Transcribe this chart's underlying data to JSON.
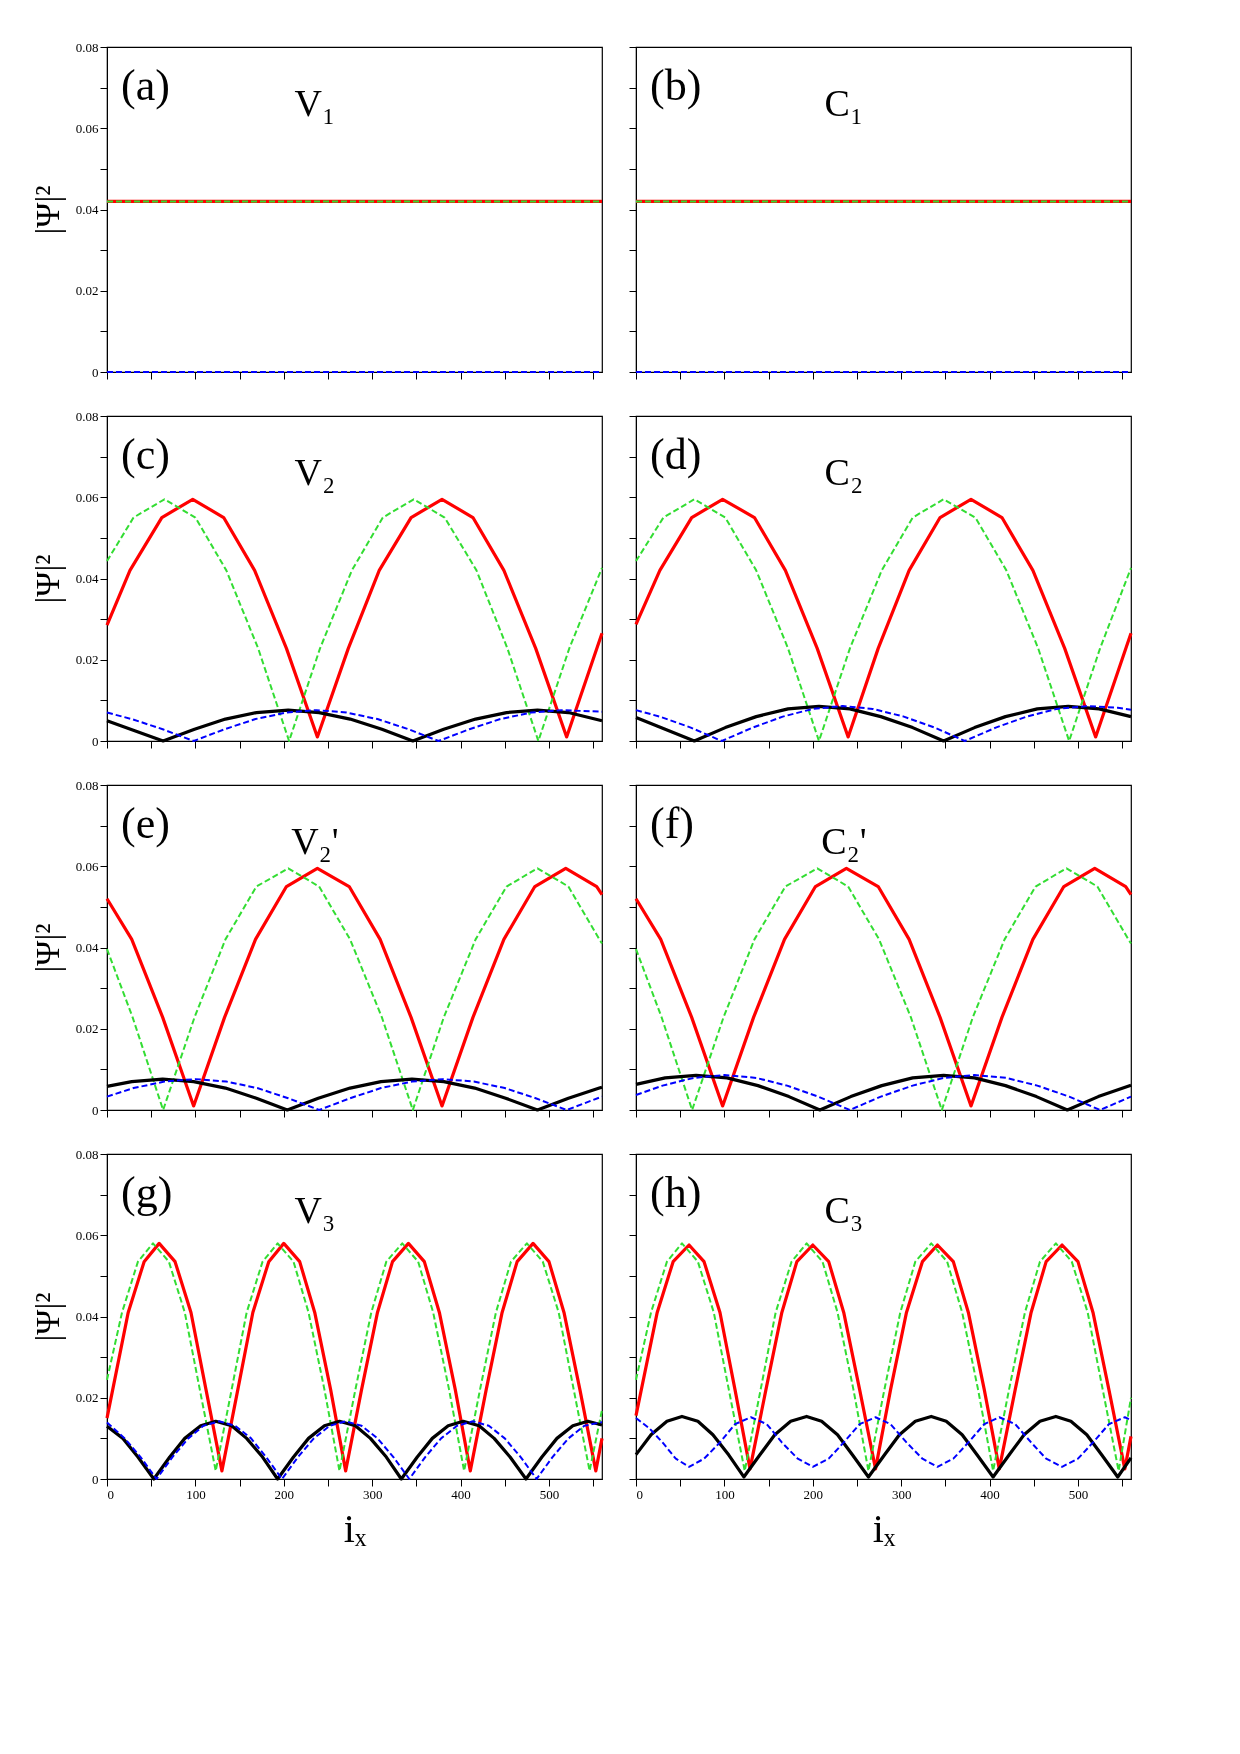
{
  "chart_data": [
    {
      "type": "line",
      "annotations": [
        "(a)",
        "V₁"
      ],
      "ylabel": "|Ψ|²",
      "tick_labels": "y",
      "xlim": [
        0,
        560
      ],
      "ylim": [
        0,
        0.08
      ],
      "xticks": [
        0,
        {
          "value": 50,
          "label": null
        },
        100,
        {
          "value": 150,
          "label": null
        },
        200,
        {
          "value": 250,
          "label": null
        },
        300,
        {
          "value": 350,
          "label": null
        },
        400,
        {
          "value": 450,
          "label": null
        },
        500,
        {
          "value": 550,
          "label": null
        }
      ],
      "yticks": [
        0,
        {
          "value": 0.01,
          "label": null
        },
        0.02,
        {
          "value": 0.03,
          "label": null
        },
        0.04,
        {
          "value": 0.05,
          "label": null
        },
        0.06,
        {
          "value": 0.07,
          "label": null
        },
        0.08
      ],
      "series": [
        {
          "color": "#ff0000",
          "line_style": "solid",
          "x": [
            0,
            560
          ],
          "values": [
            0.042,
            0.042
          ]
        },
        {
          "color": "#33dd33",
          "line_style": "dashed",
          "x": [
            0,
            560
          ],
          "values": [
            0.042,
            0.042
          ]
        },
        {
          "color": "#0000ff",
          "line_style": "dashed",
          "x": [
            0,
            560
          ],
          "values": [
            0,
            0
          ]
        }
      ]
    },
    {
      "type": "line",
      "annotations": [
        "(b)",
        "C₁"
      ],
      "tick_labels": false,
      "xlim": [
        0,
        560
      ],
      "ylim": [
        0,
        0.08
      ],
      "xticks": [
        0,
        {
          "value": 50,
          "label": null
        },
        100,
        {
          "value": 150,
          "label": null
        },
        200,
        {
          "value": 250,
          "label": null
        },
        300,
        {
          "value": 350,
          "label": null
        },
        400,
        {
          "value": 450,
          "label": null
        },
        500,
        {
          "value": 550,
          "label": null
        }
      ],
      "yticks": [
        0,
        {
          "value": 0.01,
          "label": null
        },
        0.02,
        {
          "value": 0.03,
          "label": null
        },
        0.04,
        {
          "value": 0.05,
          "label": null
        },
        0.06,
        {
          "value": 0.07,
          "label": null
        },
        0.08
      ],
      "series": [
        {
          "color": "#ff0000",
          "line_style": "solid",
          "x": [
            0,
            560
          ],
          "values": [
            0.042,
            0.042
          ]
        },
        {
          "color": "#33dd33",
          "line_style": "dashed",
          "x": [
            0,
            560
          ],
          "values": [
            0.042,
            0.042
          ]
        },
        {
          "color": "#0000ff",
          "line_style": "dashed",
          "x": [
            0,
            560
          ],
          "values": [
            0,
            0
          ]
        }
      ]
    },
    {
      "type": "line",
      "annotations": [
        "(c)",
        "V₂"
      ],
      "ylabel": "|Ψ|²",
      "tick_labels": "y",
      "xlim": [
        0,
        560
      ],
      "ylim": [
        0,
        0.08
      ],
      "xticks": [
        0,
        {
          "value": 50,
          "label": null
        },
        100,
        {
          "value": 150,
          "label": null
        },
        200,
        {
          "value": 250,
          "label": null
        },
        300,
        {
          "value": 350,
          "label": null
        },
        400,
        {
          "value": 450,
          "label": null
        },
        500,
        {
          "value": 550,
          "label": null
        }
      ],
      "yticks": [
        0,
        {
          "value": 0.01,
          "label": null
        },
        0.02,
        {
          "value": 0.03,
          "label": null
        },
        0.04,
        {
          "value": 0.05,
          "label": null
        },
        0.06,
        {
          "value": 0.07,
          "label": null
        },
        0.08
      ],
      "series": [
        {
          "color": "#ff0000",
          "line_style": "solid",
          "x": [
            0,
            26,
            62,
            97,
            132,
            167,
            203,
            238,
            273,
            308,
            344,
            379,
            414,
            449,
            485,
            520,
            560
          ],
          "values": [
            0.0285,
            0.042,
            0.055,
            0.0595,
            0.055,
            0.042,
            0.0228,
            0.001,
            0.0228,
            0.042,
            0.055,
            0.0595,
            0.055,
            0.042,
            0.0228,
            0.001,
            0.0265
          ]
        },
        {
          "color": "#33dd33",
          "line_style": "dashed",
          "x": [
            0,
            30,
            65,
            100,
            135,
            171,
            206,
            241,
            277,
            312,
            347,
            382,
            418,
            453,
            488,
            523,
            560
          ],
          "values": [
            0.0443,
            0.055,
            0.0595,
            0.055,
            0.042,
            0.0228,
            0,
            0.0228,
            0.042,
            0.055,
            0.0595,
            0.055,
            0.042,
            0.0228,
            0,
            0.0228,
            0.0426
          ]
        },
        {
          "color": "#000000",
          "line_style": "solid",
          "x": [
            0,
            63.5,
            99,
            134,
            169,
            205,
            240,
            275,
            311,
            346,
            381,
            417,
            452,
            487,
            522,
            560
          ],
          "values": [
            0.005,
            0,
            0.0029,
            0.0054,
            0.007,
            0.0076,
            0.007,
            0.0054,
            0.0029,
            0,
            0.0029,
            0.0054,
            0.007,
            0.0076,
            0.007,
            0.005
          ]
        },
        {
          "color": "#0000ff",
          "line_style": "dashed",
          "x": [
            0,
            28,
            63,
            98,
            133,
            168,
            203,
            237,
            271,
            306,
            341,
            375,
            410,
            445,
            480,
            515,
            560
          ],
          "values": [
            0.007,
            0.0054,
            0.0029,
            0,
            0.0029,
            0.0054,
            0.007,
            0.0076,
            0.007,
            0.0054,
            0.0029,
            0,
            0.0029,
            0.0054,
            0.007,
            0.0076,
            0.0072
          ]
        }
      ]
    },
    {
      "type": "line",
      "annotations": [
        "(d)",
        "C₂"
      ],
      "tick_labels": false,
      "xlim": [
        0,
        560
      ],
      "ylim": [
        0,
        0.08
      ],
      "xticks": [
        0,
        {
          "value": 50,
          "label": null
        },
        100,
        {
          "value": 150,
          "label": null
        },
        200,
        {
          "value": 250,
          "label": null
        },
        300,
        {
          "value": 350,
          "label": null
        },
        400,
        {
          "value": 450,
          "label": null
        },
        500,
        {
          "value": 550,
          "label": null
        }
      ],
      "yticks": [
        0,
        {
          "value": 0.01,
          "label": null
        },
        0.02,
        {
          "value": 0.03,
          "label": null
        },
        0.04,
        {
          "value": 0.05,
          "label": null
        },
        0.06,
        {
          "value": 0.07,
          "label": null
        },
        0.08
      ],
      "series": [
        {
          "color": "#ff0000",
          "line_style": "solid",
          "x": [
            0,
            27,
            63,
            98,
            134,
            169,
            205,
            240,
            274,
            309,
            344,
            379,
            414,
            449,
            485,
            520,
            560
          ],
          "values": [
            0.0287,
            0.042,
            0.055,
            0.0595,
            0.055,
            0.042,
            0.0228,
            0.001,
            0.0228,
            0.042,
            0.055,
            0.0595,
            0.055,
            0.042,
            0.0228,
            0.001,
            0.0265
          ]
        },
        {
          "color": "#33dd33",
          "line_style": "dashed",
          "x": [
            0,
            31,
            66,
            101,
            136,
            172,
            207,
            242,
            278,
            313,
            348,
            384,
            419,
            455,
            490,
            525,
            560
          ],
          "values": [
            0.0443,
            0.055,
            0.0595,
            0.055,
            0.042,
            0.0228,
            0,
            0.0228,
            0.042,
            0.055,
            0.0595,
            0.055,
            0.042,
            0.0228,
            0,
            0.0228,
            0.0426
          ]
        },
        {
          "color": "#000000",
          "line_style": "solid",
          "x": [
            0,
            66,
            101,
            136,
            172,
            207,
            242,
            277,
            313,
            348,
            383,
            418,
            454,
            489,
            524,
            560
          ],
          "values": [
            0.0058,
            0,
            0.0033,
            0.006,
            0.0079,
            0.0085,
            0.0079,
            0.006,
            0.0033,
            0,
            0.0033,
            0.006,
            0.0079,
            0.0085,
            0.0079,
            0.006
          ]
        },
        {
          "color": "#0000ff",
          "line_style": "dashed",
          "x": [
            0,
            27,
            62,
            97,
            132,
            166,
            200,
            234,
            268,
            303,
            338,
            372,
            407,
            442,
            476,
            511,
            545,
            560
          ],
          "values": [
            0.0076,
            0.006,
            0.0033,
            0,
            0.0033,
            0.006,
            0.0079,
            0.0086,
            0.0079,
            0.006,
            0.0033,
            0,
            0.0033,
            0.006,
            0.0079,
            0.0086,
            0.0082,
            0.0077
          ]
        }
      ]
    },
    {
      "type": "line",
      "annotations": [
        "(e)",
        "V₂'"
      ],
      "ylabel": "|Ψ|²",
      "tick_labels": "y",
      "xlim": [
        0,
        560
      ],
      "ylim": [
        0,
        0.08
      ],
      "xticks": [
        0,
        {
          "value": 50,
          "label": null
        },
        100,
        {
          "value": 150,
          "label": null
        },
        200,
        {
          "value": 250,
          "label": null
        },
        300,
        {
          "value": 350,
          "label": null
        },
        400,
        {
          "value": 450,
          "label": null
        },
        500,
        {
          "value": 550,
          "label": null
        }
      ],
      "yticks": [
        0,
        {
          "value": 0.01,
          "label": null
        },
        0.02,
        {
          "value": 0.03,
          "label": null
        },
        0.04,
        {
          "value": 0.05,
          "label": null
        },
        0.06,
        {
          "value": 0.07,
          "label": null
        },
        0.08
      ],
      "series": [
        {
          "color": "#ff0000",
          "line_style": "solid",
          "x": [
            0,
            28,
            63,
            98,
            133,
            168,
            203,
            238,
            274,
            309,
            344,
            379,
            414,
            449,
            484,
            519,
            554,
            560
          ],
          "values": [
            0.052,
            0.042,
            0.0228,
            0.001,
            0.0228,
            0.042,
            0.055,
            0.0595,
            0.055,
            0.042,
            0.0228,
            0.001,
            0.0228,
            0.042,
            0.055,
            0.0595,
            0.055,
            0.053
          ]
        },
        {
          "color": "#33dd33",
          "line_style": "dashed",
          "x": [
            0,
            29,
            63.5,
            99,
            134,
            169,
            205,
            240,
            275,
            311,
            346,
            381,
            417,
            452,
            487,
            522,
            557,
            560
          ],
          "values": [
            0.0396,
            0.0228,
            0,
            0.0228,
            0.042,
            0.055,
            0.0595,
            0.055,
            0.042,
            0.0228,
            0,
            0.0228,
            0.042,
            0.055,
            0.0595,
            0.055,
            0.042,
            0.041
          ]
        },
        {
          "color": "#000000",
          "line_style": "solid",
          "x": [
            0,
            28,
            63,
            98,
            134,
            169,
            204,
            239,
            275,
            310,
            345,
            381,
            416,
            451,
            487,
            522,
            557,
            560
          ],
          "values": [
            0.0058,
            0.007,
            0.0076,
            0.007,
            0.0054,
            0.0029,
            0,
            0.0029,
            0.0054,
            0.007,
            0.0076,
            0.007,
            0.0054,
            0.0029,
            0,
            0.0029,
            0.0054,
            0.0056
          ]
        },
        {
          "color": "#0000ff",
          "line_style": "dashed",
          "x": [
            0,
            30,
            65,
            100,
            135,
            170,
            205,
            240,
            275,
            310,
            345,
            380,
            415,
            450,
            485,
            520,
            560
          ],
          "values": [
            0.0033,
            0.0054,
            0.007,
            0.0076,
            0.007,
            0.0054,
            0.0029,
            0,
            0.0029,
            0.0054,
            0.007,
            0.0076,
            0.007,
            0.0054,
            0.0029,
            0,
            0.0033
          ]
        }
      ]
    },
    {
      "type": "line",
      "annotations": [
        "(f)",
        "C₂'"
      ],
      "tick_labels": false,
      "xlim": [
        0,
        560
      ],
      "ylim": [
        0,
        0.08
      ],
      "xticks": [
        0,
        {
          "value": 50,
          "label": null
        },
        100,
        {
          "value": 150,
          "label": null
        },
        200,
        {
          "value": 250,
          "label": null
        },
        300,
        {
          "value": 350,
          "label": null
        },
        400,
        {
          "value": 450,
          "label": null
        },
        500,
        {
          "value": 550,
          "label": null
        }
      ],
      "yticks": [
        0,
        {
          "value": 0.01,
          "label": null
        },
        0.02,
        {
          "value": 0.03,
          "label": null
        },
        0.04,
        {
          "value": 0.05,
          "label": null
        },
        0.06,
        {
          "value": 0.07,
          "label": null
        },
        0.08
      ],
      "series": [
        {
          "color": "#ff0000",
          "line_style": "solid",
          "x": [
            0,
            28,
            63,
            98,
            133,
            168,
            203,
            238,
            274,
            309,
            344,
            379,
            414,
            449,
            484,
            519,
            554,
            560
          ],
          "values": [
            0.052,
            0.042,
            0.0228,
            0.001,
            0.0228,
            0.042,
            0.055,
            0.0595,
            0.055,
            0.042,
            0.0228,
            0.001,
            0.0228,
            0.042,
            0.055,
            0.0595,
            0.055,
            0.053
          ]
        },
        {
          "color": "#33dd33",
          "line_style": "dashed",
          "x": [
            0,
            29,
            63.5,
            99,
            134,
            169,
            205,
            240,
            275,
            311,
            346,
            381,
            417,
            452,
            487,
            522,
            557,
            560
          ],
          "values": [
            0.0396,
            0.0228,
            0,
            0.0228,
            0.042,
            0.055,
            0.0595,
            0.055,
            0.042,
            0.0228,
            0,
            0.0228,
            0.042,
            0.055,
            0.0595,
            0.055,
            0.042,
            0.041
          ]
        },
        {
          "color": "#000000",
          "line_style": "solid",
          "x": [
            0,
            33,
            68,
            103,
            138,
            173,
            208,
            243,
            278,
            313,
            348,
            383,
            418,
            453,
            488,
            523,
            560
          ],
          "values": [
            0.0063,
            0.0079,
            0.0085,
            0.0079,
            0.006,
            0.0033,
            0,
            0.0033,
            0.006,
            0.0079,
            0.0085,
            0.0079,
            0.006,
            0.0033,
            0,
            0.0033,
            0.0061
          ]
        },
        {
          "color": "#0000ff",
          "line_style": "dashed",
          "x": [
            0,
            30,
            65,
            100,
            136,
            171,
            206,
            242,
            277,
            313,
            348,
            383,
            419,
            454,
            490,
            525,
            560
          ],
          "values": [
            0.0037,
            0.006,
            0.0079,
            0.0086,
            0.0079,
            0.006,
            0.0033,
            0,
            0.0033,
            0.006,
            0.0079,
            0.0086,
            0.0079,
            0.006,
            0.0033,
            0,
            0.0033
          ]
        }
      ]
    },
    {
      "type": "line",
      "annotations": [
        "(g)",
        "V₃"
      ],
      "ylabel": "|Ψ|²",
      "xlabel": "iₓ",
      "xlim": [
        0,
        560
      ],
      "ylim": [
        0,
        0.08
      ],
      "xticks": [
        0,
        {
          "value": 50,
          "label": null
        },
        100,
        {
          "value": 150,
          "label": null
        },
        200,
        {
          "value": 250,
          "label": null
        },
        300,
        {
          "value": 350,
          "label": null
        },
        400,
        {
          "value": 450,
          "label": null
        },
        500,
        {
          "value": 550,
          "label": null
        }
      ],
      "yticks": [
        0,
        {
          "value": 0.01,
          "label": null
        },
        0.02,
        {
          "value": 0.03,
          "label": null
        },
        0.04,
        {
          "value": 0.05,
          "label": null
        },
        0.06,
        {
          "value": 0.07,
          "label": null
        },
        0.08
      ],
      "series": [
        {
          "color": "#ff0000",
          "line_style": "solid",
          "x": [
            0,
            24,
            42,
            59,
            77,
            95,
            112,
            130,
            148,
            165,
            183,
            200,
            218,
            235,
            253,
            270,
            288,
            306,
            323,
            341,
            359,
            376,
            394,
            411,
            429,
            447,
            464,
            482,
            500,
            517,
            535,
            553,
            560
          ],
          "values": [
            0.015,
            0.041,
            0.0535,
            0.058,
            0.0535,
            0.041,
            0.022,
            0.002,
            0.022,
            0.041,
            0.0535,
            0.058,
            0.0535,
            0.041,
            0.022,
            0.002,
            0.022,
            0.041,
            0.0535,
            0.058,
            0.0535,
            0.041,
            0.022,
            0.002,
            0.022,
            0.041,
            0.0535,
            0.058,
            0.0535,
            0.041,
            0.022,
            0.002,
            0.01
          ]
        },
        {
          "color": "#33dd33",
          "line_style": "dashed",
          "x": [
            0,
            17,
            35,
            52,
            70,
            88,
            105,
            123,
            141,
            158,
            176,
            193,
            211,
            228,
            246,
            263,
            281,
            299,
            316,
            334,
            352,
            369,
            387,
            404,
            422,
            440,
            457,
            475,
            493,
            511,
            528,
            546,
            560
          ],
          "values": [
            0.0244,
            0.041,
            0.0535,
            0.058,
            0.0535,
            0.041,
            0.022,
            0.002,
            0.022,
            0.041,
            0.0535,
            0.058,
            0.0535,
            0.041,
            0.022,
            0.002,
            0.022,
            0.041,
            0.0535,
            0.058,
            0.0535,
            0.041,
            0.022,
            0.002,
            0.022,
            0.041,
            0.0535,
            0.058,
            0.0535,
            0.041,
            0.022,
            0.002,
            0.017
          ]
        },
        {
          "color": "#000000",
          "line_style": "solid",
          "x": [
            0,
            18,
            35,
            53,
            71,
            88,
            106,
            123,
            141,
            158,
            176,
            193,
            211,
            228,
            246,
            263,
            281,
            298,
            316,
            333,
            351,
            368,
            386,
            403,
            421,
            438,
            456,
            474,
            492,
            509,
            527,
            544,
            560
          ],
          "values": [
            0.013,
            0.01,
            0.0054,
            0,
            0.0054,
            0.01,
            0.0131,
            0.0142,
            0.0131,
            0.01,
            0.0054,
            0,
            0.0054,
            0.01,
            0.0131,
            0.0142,
            0.0131,
            0.01,
            0.0054,
            0,
            0.0054,
            0.01,
            0.0131,
            0.0142,
            0.0131,
            0.01,
            0.0054,
            0,
            0.0054,
            0.01,
            0.0131,
            0.0142,
            0.0133
          ]
        },
        {
          "color": "#0000ff",
          "line_style": "dashed",
          "x": [
            0,
            20,
            38,
            56,
            74,
            92,
            109,
            127,
            145,
            163,
            180,
            198,
            216,
            234,
            252,
            270,
            288,
            306,
            324,
            342,
            360,
            378,
            396,
            414,
            432,
            450,
            468,
            486,
            504,
            522,
            540,
            560
          ],
          "values": [
            0.0139,
            0.01,
            0.0054,
            0,
            0.0054,
            0.01,
            0.0131,
            0.0142,
            0.0131,
            0.01,
            0.0054,
            0,
            0.0054,
            0.01,
            0.0131,
            0.0142,
            0.0131,
            0.01,
            0.0054,
            0,
            0.0054,
            0.01,
            0.0131,
            0.0142,
            0.0131,
            0.01,
            0.0054,
            0,
            0.0054,
            0.01,
            0.0131,
            0.014
          ]
        }
      ]
    },
    {
      "type": "line",
      "annotations": [
        "(h)",
        "C₃"
      ],
      "xlabel": "iₓ",
      "tick_labels": "x",
      "xlim": [
        0,
        560
      ],
      "ylim": [
        0,
        0.08
      ],
      "xticks": [
        0,
        {
          "value": 50,
          "label": null
        },
        100,
        {
          "value": 150,
          "label": null
        },
        200,
        {
          "value": 250,
          "label": null
        },
        300,
        {
          "value": 350,
          "label": null
        },
        400,
        {
          "value": 450,
          "label": null
        },
        500,
        {
          "value": 550,
          "label": null
        }
      ],
      "yticks": [
        0,
        {
          "value": 0.01,
          "label": null
        },
        0.02,
        {
          "value": 0.03,
          "label": null
        },
        0.04,
        {
          "value": 0.05,
          "label": null
        },
        0.06,
        {
          "value": 0.07,
          "label": null
        },
        0.08
      ],
      "series": [
        {
          "color": "#ff0000",
          "line_style": "solid",
          "x": [
            0,
            24,
            42,
            60,
            77,
            95,
            112,
            129,
            147,
            165,
            182,
            200,
            218,
            235,
            253,
            271,
            288,
            306,
            324,
            341,
            359,
            376,
            394,
            411,
            429,
            447,
            464,
            482,
            500,
            517,
            535,
            553,
            560
          ],
          "values": [
            0.0156,
            0.041,
            0.0535,
            0.0576,
            0.0535,
            0.041,
            0.022,
            0.0025,
            0.022,
            0.041,
            0.0535,
            0.0576,
            0.0535,
            0.041,
            0.022,
            0.0025,
            0.022,
            0.041,
            0.0535,
            0.0576,
            0.0535,
            0.041,
            0.022,
            0.0025,
            0.022,
            0.041,
            0.0535,
            0.0576,
            0.0535,
            0.041,
            0.022,
            0.0025,
            0.0105
          ]
        },
        {
          "color": "#33dd33",
          "line_style": "dashed",
          "x": [
            0,
            17,
            35,
            52,
            70,
            88,
            105,
            123,
            141,
            158,
            176,
            193,
            211,
            228,
            246,
            263,
            281,
            299,
            316,
            334,
            352,
            369,
            387,
            404,
            422,
            440,
            457,
            475,
            493,
            511,
            528,
            546,
            560
          ],
          "values": [
            0.0244,
            0.041,
            0.0535,
            0.058,
            0.0535,
            0.041,
            0.022,
            0.002,
            0.022,
            0.041,
            0.0535,
            0.058,
            0.0535,
            0.041,
            0.022,
            0.002,
            0.022,
            0.041,
            0.0535,
            0.058,
            0.0535,
            0.041,
            0.022,
            0.002,
            0.022,
            0.041,
            0.0535,
            0.058,
            0.0535,
            0.041,
            0.022,
            0.002,
            0.02
          ]
        },
        {
          "color": "#000000",
          "line_style": "solid",
          "x": [
            0,
            17,
            35,
            52,
            70,
            87,
            105,
            122,
            140,
            157,
            175,
            193,
            210,
            228,
            245,
            263,
            281,
            298,
            316,
            334,
            351,
            369,
            386,
            404,
            422,
            439,
            457,
            475,
            492,
            510,
            527,
            545,
            560
          ],
          "values": [
            0.006,
            0.0109,
            0.0142,
            0.0154,
            0.0142,
            0.0109,
            0.0059,
            0.0005,
            0.0059,
            0.0109,
            0.0142,
            0.0154,
            0.0142,
            0.0109,
            0.0059,
            0.0005,
            0.0059,
            0.0109,
            0.0142,
            0.0154,
            0.0142,
            0.0109,
            0.0059,
            0.0005,
            0.0059,
            0.0109,
            0.0142,
            0.0154,
            0.0142,
            0.0109,
            0.0059,
            0.0005,
            0.0052
          ]
        },
        {
          "color": "#0000ff",
          "line_style": "dashed",
          "x": [
            0,
            15,
            30,
            45,
            60,
            77,
            95,
            112,
            130,
            148,
            165,
            183,
            200,
            218,
            235,
            253,
            271,
            288,
            306,
            324,
            341,
            359,
            376,
            394,
            411,
            429,
            447,
            464,
            482,
            500,
            517,
            535,
            553,
            560
          ],
          "values": [
            0.015,
            0.0125,
            0.009,
            0.005,
            0.003,
            0.005,
            0.009,
            0.0135,
            0.0152,
            0.0135,
            0.009,
            0.005,
            0.003,
            0.005,
            0.009,
            0.0135,
            0.0152,
            0.0135,
            0.009,
            0.005,
            0.003,
            0.005,
            0.009,
            0.0135,
            0.0152,
            0.0135,
            0.009,
            0.005,
            0.003,
            0.005,
            0.009,
            0.0135,
            0.0152,
            0.0145
          ]
        }
      ]
    }
  ]
}
